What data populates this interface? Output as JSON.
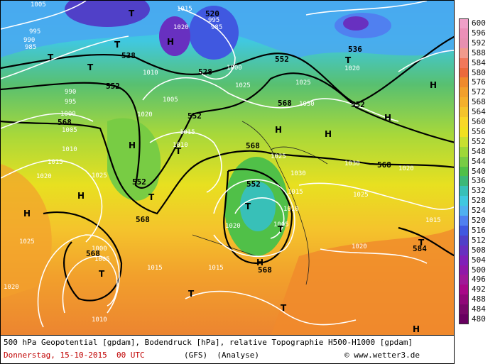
{
  "map": {
    "trough_label": "T",
    "high_label": "H",
    "geopotential_labels": [
      "520",
      "528",
      "536",
      "552",
      "552",
      "568",
      "568",
      "552",
      "568",
      "568",
      "552",
      "568",
      "584",
      "538",
      "552",
      "552",
      "568",
      "568"
    ],
    "pressure_labels": [
      "1005",
      "995",
      "990",
      "985",
      "1000",
      "1005",
      "1010",
      "1015",
      "1020",
      "1025",
      "1030",
      "1025",
      "1020",
      "1015",
      "1010",
      "1005",
      "995",
      "985",
      "1020",
      "1025",
      "1015",
      "1020",
      "1010",
      "1015",
      "1020",
      "1025",
      "1030",
      "1025",
      "1020",
      "1015",
      "1010",
      "1005",
      "1000",
      "1015",
      "1020",
      "1025",
      "1030",
      "1020",
      "1015",
      "1010",
      "1005",
      "1000",
      "995",
      "990"
    ]
  },
  "legend": {
    "values": [
      "600",
      "596",
      "592",
      "588",
      "584",
      "580",
      "576",
      "572",
      "568",
      "564",
      "560",
      "556",
      "552",
      "548",
      "544",
      "540",
      "536",
      "532",
      "528",
      "524",
      "520",
      "516",
      "512",
      "508",
      "504",
      "500",
      "496",
      "492",
      "488",
      "484",
      "480"
    ],
    "colors": [
      "#f0a0c8",
      "#ec90b8",
      "#e890b0",
      "#f29a8c",
      "#f2785a",
      "#ec6a3c",
      "#f08a2c",
      "#f2a02c",
      "#f4b02c",
      "#f4c42c",
      "#f8d828",
      "#f0e020",
      "#c8e030",
      "#9ed838",
      "#78cc44",
      "#50c048",
      "#3cb878",
      "#38c0b8",
      "#40c8e0",
      "#50b0f0",
      "#5080f0",
      "#4058e0",
      "#5040c8",
      "#6830c0",
      "#8020b8",
      "#9018a8",
      "#a01898",
      "#a80888",
      "#900878",
      "#780868",
      "#680060"
    ]
  },
  "footer": {
    "description": "500 hPa Geopotential [gpdam], Bodendruck [hPa], relative Topographie H500-H1000 [gpdam]",
    "date": "Donnerstag, 15-10-2015  00 UTC",
    "model": "(GFS)  (Analyse)",
    "copyright": "© www.wetter3.de"
  }
}
